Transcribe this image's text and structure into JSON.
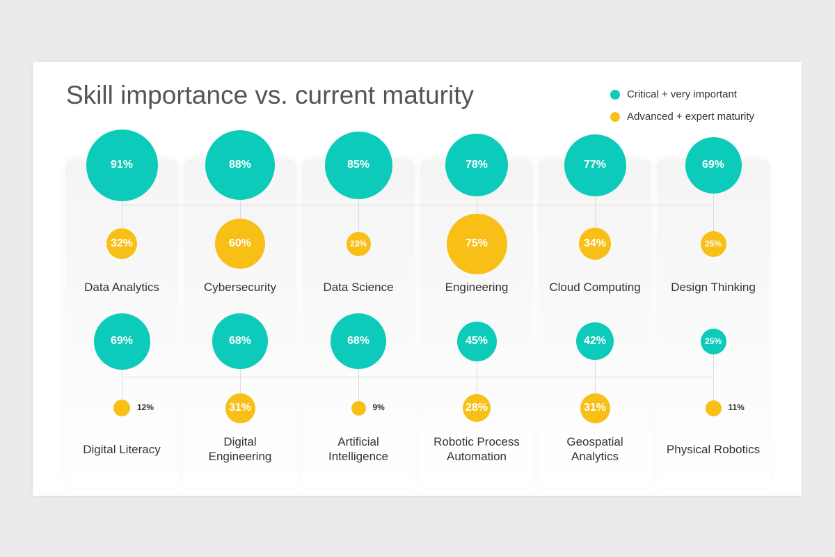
{
  "chart_data": {
    "type": "bubble",
    "title": "Skill importance vs. current maturity",
    "categories": [
      "Data Analytics",
      "Cybersecurity",
      "Data Science",
      "Engineering",
      "Cloud Computing",
      "Design Thinking",
      "Digital Literacy",
      "Digital Engineering",
      "Artificial Intelligence",
      "Robotic Process Automation",
      "Geospatial Analytics",
      "Physical Robotics"
    ],
    "series": [
      {
        "name": "Critical + very important",
        "color": "#0ccbba",
        "values": [
          91,
          88,
          85,
          78,
          77,
          69,
          69,
          68,
          68,
          45,
          42,
          25
        ],
        "value_labels": [
          "91%",
          "88%",
          "85%",
          "78%",
          "77%",
          "69%",
          "69%",
          "68%",
          "68%",
          "45%",
          "42%",
          "25%"
        ]
      },
      {
        "name": "Advanced + expert maturity",
        "color": "#f8bf17",
        "values": [
          32,
          60,
          23,
          75,
          34,
          25,
          12,
          31,
          9,
          28,
          31,
          11
        ],
        "value_labels": [
          "32%",
          "60%",
          "23%",
          "75%",
          "34%",
          "25%",
          "12%",
          "31%",
          "9%",
          "28%",
          "31%",
          "11%"
        ]
      }
    ]
  }
}
